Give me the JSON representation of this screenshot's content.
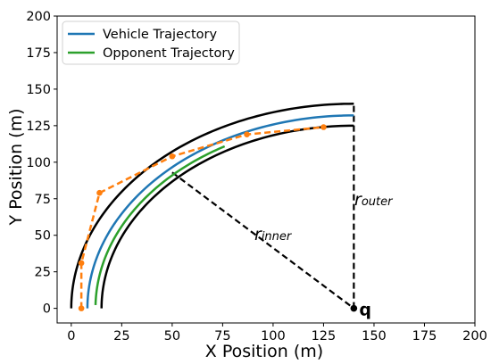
{
  "chart_data": {
    "type": "line",
    "xlabel": "X Position (m)",
    "ylabel": "Y Position (m)",
    "xlim": [
      -7,
      200
    ],
    "ylim": [
      -10,
      200
    ],
    "xticks": [
      0,
      25,
      50,
      75,
      100,
      125,
      150,
      175,
      200
    ],
    "yticks": [
      0,
      25,
      50,
      75,
      100,
      125,
      150,
      175,
      200
    ],
    "grid": false,
    "legend_position": "top-left",
    "center": {
      "label": "q",
      "x": 140,
      "y": 0
    },
    "track": {
      "inner_radius": 125,
      "outer_radius": 140,
      "color": "#000000"
    },
    "series": [
      {
        "name": "Vehicle Trajectory",
        "color": "#1f77b4",
        "style": "solid",
        "in_legend": true,
        "radius": 132,
        "angle_range_deg": [
          90,
          180
        ]
      },
      {
        "name": "Opponent Trajectory",
        "color": "#2ca02c",
        "style": "solid",
        "in_legend": true,
        "radius": 128,
        "angle_range_deg": [
          120,
          179
        ]
      },
      {
        "name": "",
        "color": "#ff7f0e",
        "style": "dashed",
        "in_legend": false,
        "markers": true,
        "points": [
          [
            5,
            0
          ],
          [
            5,
            31
          ],
          [
            14,
            79
          ],
          [
            50,
            104
          ],
          [
            87,
            119
          ],
          [
            125,
            124
          ]
        ]
      }
    ],
    "annotations": [
      {
        "label": "r",
        "subscript": "inner",
        "from": [
          50,
          93
        ],
        "to": [
          140,
          0
        ]
      },
      {
        "label": "r",
        "subscript": "outer",
        "from": [
          140,
          0
        ],
        "to": [
          140,
          140
        ]
      }
    ]
  }
}
